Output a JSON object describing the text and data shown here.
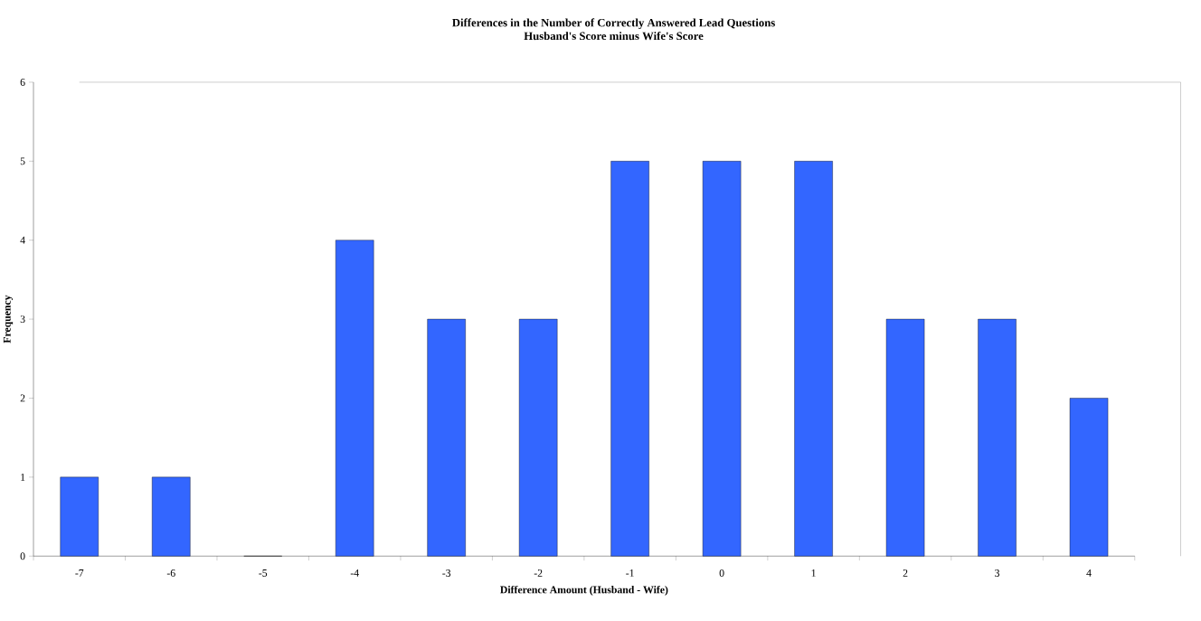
{
  "chart_data": {
    "type": "bar",
    "title": "Differences in the Number of Correctly Answered Lead Questions",
    "subtitle": "Husband's Score minus Wife's Score",
    "xlabel": "Difference Amount (Husband - Wife)",
    "ylabel": "Frequency",
    "categories": [
      "-7",
      "-6",
      "-5",
      "-4",
      "-3",
      "-2",
      "-1",
      "0",
      "1",
      "2",
      "3",
      "4"
    ],
    "values": [
      1,
      1,
      0,
      4,
      3,
      3,
      5,
      5,
      5,
      3,
      3,
      2
    ],
    "color": "#3366ff",
    "ylim": [
      0,
      6
    ],
    "yticks": [
      0,
      1,
      2,
      3,
      4,
      5,
      6
    ],
    "grid": false
  }
}
